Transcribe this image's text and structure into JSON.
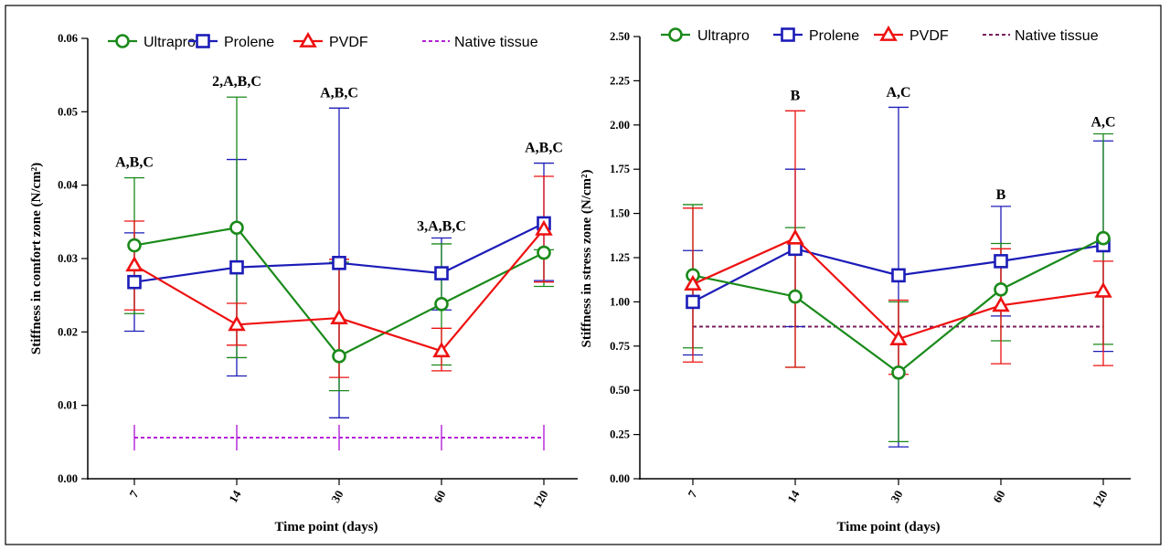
{
  "colors": {
    "Ultrapro": "#1a8a1a",
    "Prolene": "#1c1cb8",
    "PVDF": "#ee1111",
    "native_left": "#b41fd8",
    "native_right": "#7a1f5f"
  },
  "chart_data": [
    {
      "type": "line",
      "title": "",
      "xlabel": "Time point (days)",
      "ylabel": "Stiffness in comfort zone (N/cm²)",
      "categories": [
        "7",
        "14",
        "30",
        "60",
        "120"
      ],
      "ylim": [
        0,
        0.06
      ],
      "yticks": [
        "0.00",
        "0.01",
        "0.02",
        "0.03",
        "0.04",
        "0.05",
        "0.06"
      ],
      "legend_position": "top",
      "series": [
        {
          "name": "Ultrapro",
          "marker": "circle",
          "values": [
            0.0318,
            0.0342,
            0.0167,
            0.0238,
            0.0308
          ],
          "err_high": [
            0.041,
            0.052,
            0.0295,
            0.032,
            0.0312
          ],
          "err_low": [
            0.0225,
            0.0165,
            0.012,
            0.0155,
            0.0262
          ]
        },
        {
          "name": "Prolene",
          "marker": "square",
          "values": [
            0.0268,
            0.0288,
            0.0294,
            0.028,
            0.0348
          ],
          "err_high": [
            0.0335,
            0.0435,
            0.0505,
            0.0328,
            0.043
          ],
          "err_low": [
            0.0201,
            0.014,
            0.0083,
            0.023,
            0.027
          ]
        },
        {
          "name": "PVDF",
          "marker": "triangle",
          "values": [
            0.0291,
            0.021,
            0.0219,
            0.0174,
            0.034
          ],
          "err_high": [
            0.0351,
            0.0239,
            0.0299,
            0.0205,
            0.0412
          ],
          "err_low": [
            0.023,
            0.0182,
            0.0138,
            0.0147,
            0.0268
          ]
        },
        {
          "name": "Native tissue",
          "dashed": true,
          "values": [
            0.0056,
            0.0056,
            0.0056,
            0.0056,
            0.0056
          ]
        }
      ],
      "annotations": [
        {
          "x": "7",
          "y": 0.0425,
          "text": "A,B,C"
        },
        {
          "x": "14",
          "y": 0.0535,
          "text": "2,A,B,C"
        },
        {
          "x": "30",
          "y": 0.052,
          "text": "A,B,C"
        },
        {
          "x": "60",
          "y": 0.0338,
          "text": "3,A,B,C"
        },
        {
          "x": "120",
          "y": 0.0445,
          "text": "A,B,C"
        }
      ]
    },
    {
      "type": "line",
      "title": "",
      "xlabel": "Time point (days)",
      "ylabel": "Stiffness in stress zone (N/cm²)",
      "categories": [
        "7",
        "14",
        "30",
        "60",
        "120"
      ],
      "ylim": [
        0,
        2.5
      ],
      "yticks": [
        "0.00",
        "0.25",
        "0.50",
        "0.75",
        "1.00",
        "1.25",
        "1.50",
        "1.75",
        "2.00",
        "2.25",
        "2.50"
      ],
      "legend_position": "top",
      "series": [
        {
          "name": "Ultrapro",
          "marker": "circle",
          "values": [
            1.15,
            1.03,
            0.6,
            1.07,
            1.36
          ],
          "err_high": [
            1.55,
            1.42,
            1.0,
            1.33,
            1.95
          ],
          "err_low": [
            0.74,
            0.63,
            0.21,
            0.78,
            0.76
          ]
        },
        {
          "name": "Prolene",
          "marker": "square",
          "values": [
            1.0,
            1.3,
            1.15,
            1.23,
            1.32
          ],
          "err_high": [
            1.29,
            1.75,
            2.1,
            1.54,
            1.91
          ],
          "err_low": [
            0.7,
            0.86,
            0.18,
            0.92,
            0.72
          ]
        },
        {
          "name": "PVDF",
          "marker": "triangle",
          "values": [
            1.1,
            1.36,
            0.79,
            0.98,
            1.06
          ],
          "err_high": [
            1.53,
            2.08,
            1.01,
            1.3,
            1.23
          ],
          "err_low": [
            0.66,
            0.63,
            0.59,
            0.65,
            0.64
          ]
        },
        {
          "name": "Native tissue",
          "dashed": true,
          "values": [
            0.86,
            0.86,
            0.86,
            0.86,
            0.86
          ]
        }
      ],
      "annotations": [
        {
          "x": "14",
          "y": 2.14,
          "text": "B"
        },
        {
          "x": "30",
          "y": 2.16,
          "text": "A,C"
        },
        {
          "x": "60",
          "y": 1.58,
          "text": "B"
        },
        {
          "x": "120",
          "y": 1.99,
          "text": "A,C"
        }
      ]
    }
  ]
}
